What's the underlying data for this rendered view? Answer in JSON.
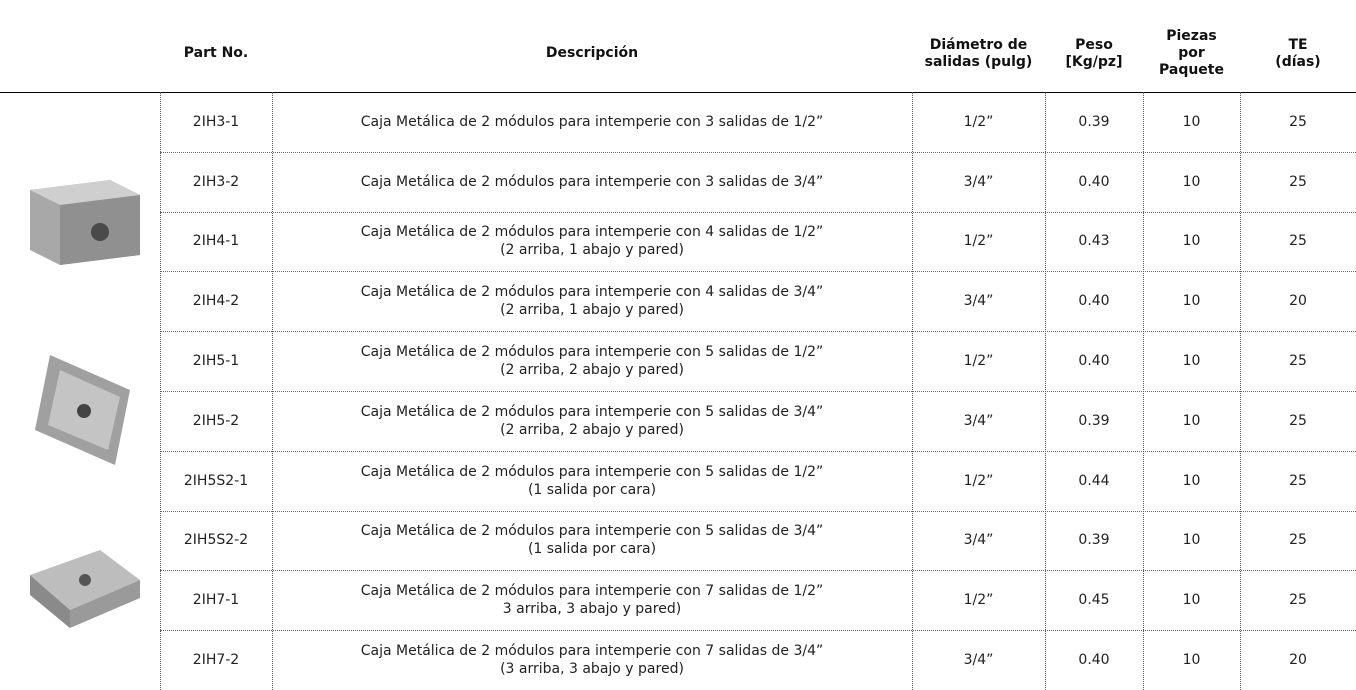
{
  "table": {
    "headers": [
      [
        "Part No."
      ],
      [
        "Descripción"
      ],
      [
        "Diámetro de",
        "salidas (pulg)"
      ],
      [
        "Peso",
        "[Kg/pz]"
      ],
      [
        "Piezas",
        "por",
        "Paquete"
      ],
      [
        "TE",
        "(días)"
      ]
    ],
    "rows": [
      [
        "2IH3-1",
        [
          "Caja Metálica de 2 módulos para intemperie con 3 salidas de 1/2”"
        ],
        "1/2”",
        "0.39",
        "10",
        "25"
      ],
      [
        "2IH3-2",
        [
          "Caja Metálica de 2 módulos para intemperie con 3 salidas de 3/4”"
        ],
        "3/4”",
        "0.40",
        "10",
        "25"
      ],
      [
        "2IH4-1",
        [
          "Caja Metálica de 2 módulos para intemperie con 4 salidas de 1/2”",
          "(2 arriba, 1 abajo y pared)"
        ],
        "1/2”",
        "0.43",
        "10",
        "25"
      ],
      [
        "2IH4-2",
        [
          "Caja Metálica de 2 módulos para intemperie con 4 salidas de 3/4”",
          "(2 arriba, 1 abajo y pared)"
        ],
        "3/4”",
        "0.40",
        "10",
        "20"
      ],
      [
        "2IH5-1",
        [
          "Caja Metálica de 2 módulos para intemperie con 5 salidas de 1/2”",
          "(2 arriba, 2 abajo y pared)"
        ],
        "1/2”",
        "0.40",
        "10",
        "25"
      ],
      [
        "2IH5-2",
        [
          "Caja Metálica de 2 módulos para intemperie con 5 salidas de 3/4”",
          "(2 arriba, 2 abajo y pared)"
        ],
        "3/4”",
        "0.39",
        "10",
        "25"
      ],
      [
        "2IH5S2-1",
        [
          "Caja Metálica de 2 módulos para intemperie con 5 salidas de 1/2”",
          "(1 salida por cara)"
        ],
        "1/2”",
        "0.44",
        "10",
        "25"
      ],
      [
        "2IH5S2-2",
        [
          "Caja Metálica de 2 módulos para intemperie con 5 salidas de 3/4”",
          "(1 salida por cara)"
        ],
        "3/4”",
        "0.39",
        "10",
        "25"
      ],
      [
        "2IH7-1",
        [
          "Caja Metálica de 2 módulos para intemperie con 7 salidas de 1/2”",
          "3 arriba, 3 abajo y pared)"
        ],
        "1/2”",
        "0.45",
        "10",
        "25"
      ],
      [
        "2IH7-2",
        [
          "Caja Metálica de 2 módulos para intemperie con 7 salidas de 3/4”",
          "(3 arriba, 3 abajo y pared)"
        ],
        "3/4”",
        "0.40",
        "10",
        "20"
      ]
    ]
  }
}
